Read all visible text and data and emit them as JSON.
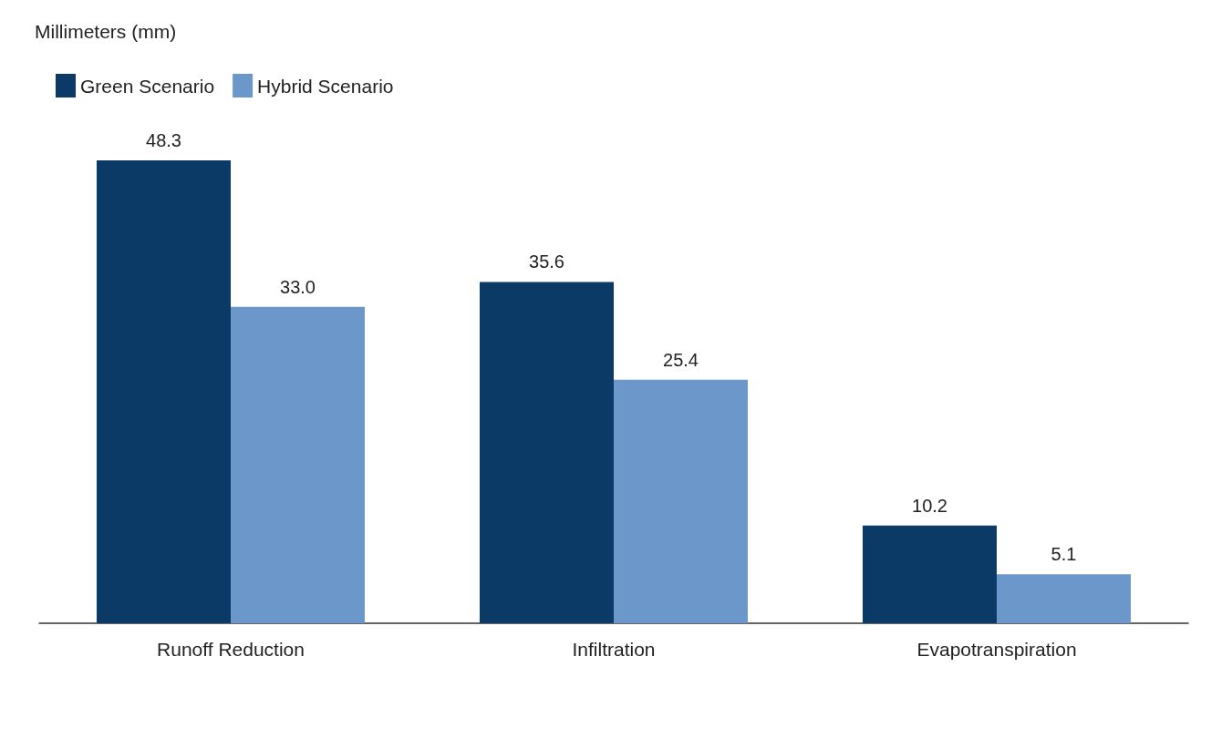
{
  "chart_data": {
    "type": "bar",
    "annotations": [
      "Millimeters (mm)"
    ],
    "categories": [
      "Runoff Reduction",
      "Infiltration",
      "Evapotranspiration"
    ],
    "series": [
      {
        "name": "Green Scenario",
        "color": "#0c3a66",
        "values": [
          48.3,
          35.6,
          10.2
        ],
        "value_labels": [
          "48.3",
          "35.6",
          "10.2"
        ]
      },
      {
        "name": "Hybrid Scenario",
        "color": "#6b97cb",
        "values": [
          33.0,
          25.4,
          5.1
        ],
        "value_labels": [
          "33.0",
          "25.4",
          "5.1"
        ]
      }
    ],
    "legend": "top left"
  }
}
